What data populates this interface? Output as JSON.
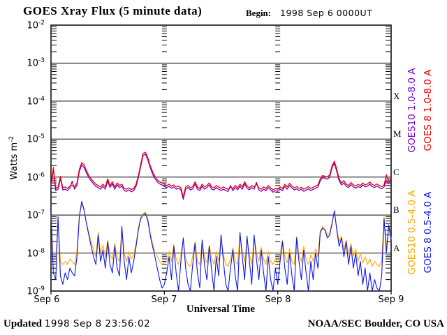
{
  "header": {
    "title": "GOES Xray Flux (5 minute data)",
    "begin_label": "Begin:",
    "begin_value": "1998 Sep 6 0000UT"
  },
  "footer": {
    "updated_label": "Updated",
    "updated_value": "1998 Sep  8 23:56:02",
    "credit": "NOAA/SEC Boulder, CO USA"
  },
  "chart_data": {
    "type": "line",
    "title": "GOES Xray Flux (5 minute data)",
    "xlabel": "Universal Time",
    "ylabel": "Watts m-2",
    "ylabel_base": "Watts m",
    "ylabel_sup": "-2",
    "x_tick_labels": [
      "Sep 6",
      "Sep 7",
      "Sep 8",
      "Sep 9"
    ],
    "x_range_hours": [
      0,
      72
    ],
    "x_step_hours": 0.5,
    "y_scale": "log",
    "y_exponents": [
      -2,
      -3,
      -4,
      -5,
      -6,
      -7,
      -8,
      -9
    ],
    "ylim": [
      1e-09,
      0.01
    ],
    "grid": {
      "horizontal_decade_lines": true,
      "vertical_day_tick_columns": true
    },
    "legend_position": "right-rotated",
    "flux_classes": [
      {
        "label": "X",
        "flux": 0.0001
      },
      {
        "label": "M",
        "flux": 1e-05
      },
      {
        "label": "C",
        "flux": 1e-06
      },
      {
        "label": "B",
        "flux": 1e-07
      },
      {
        "label": "A",
        "flux": 1e-08
      }
    ],
    "series": [
      {
        "name": "GOES10 1.0-8.0 A",
        "color": "#7a00cc",
        "width": 1.3,
        "values": [
          5.3e-07,
          1.6e-06,
          4.4e-07,
          4.8e-07,
          9.2e-07,
          4.6e-07,
          4.8e-07,
          4.4e-07,
          5.1e-07,
          7.8e-07,
          4.8e-07,
          6.2e-07,
          1.4e-06,
          2.1e-06,
          1.8e-06,
          1.3e-06,
          9.7e-07,
          7.9e-07,
          6.6e-07,
          5.7e-07,
          5.3e-07,
          4.8e-07,
          5.7e-07,
          4.8e-07,
          7.9e-07,
          5.3e-07,
          6.6e-07,
          4.8e-07,
          6.2e-07,
          5.3e-07,
          5.7e-07,
          4.4e-07,
          4.2e-07,
          4.6e-07,
          4.1e-07,
          4.4e-07,
          5.7e-07,
          9.7e-07,
          1.9e-06,
          3.7e-06,
          4e-06,
          2.8e-06,
          1.8e-06,
          1.2e-06,
          9.2e-07,
          7.5e-07,
          6.6e-07,
          6.2e-07,
          5.7e-07,
          5.3e-07,
          5.7e-07,
          5.1e-07,
          5.5e-07,
          4.8e-07,
          5.1e-07,
          4.6e-07,
          2.6e-07,
          4.8e-07,
          5.3e-07,
          4.6e-07,
          4.9e-07,
          6.6e-07,
          4.8e-07,
          4.4e-07,
          5.7e-07,
          4.8e-07,
          5.3e-07,
          6.2e-07,
          4.8e-07,
          4.6e-07,
          5.3e-07,
          4.8e-07,
          4.4e-07,
          4.8e-07,
          4.4e-07,
          4.2e-07,
          6e-07,
          4.4e-07,
          5.3e-07,
          4.6e-07,
          5.7e-07,
          4.8e-07,
          6.6e-07,
          5.1e-07,
          4.6e-07,
          5.3e-07,
          4.8e-07,
          7.2e-07,
          4.6e-07,
          4.2e-07,
          4.8e-07,
          4.4e-07,
          5.3e-07,
          4.6e-07,
          4e-07,
          4.4e-07,
          4.2e-07,
          4.8e-07,
          4.4e-07,
          5.7e-07,
          4.8e-07,
          6e-07,
          5.1e-07,
          4.6e-07,
          4.9e-07,
          4.4e-07,
          4.8e-07,
          4.2e-07,
          4.6e-07,
          4.9e-07,
          4.4e-07,
          4.8e-07,
          5.1e-07,
          5.5e-07,
          7.9e-07,
          9.7e-07,
          9.2e-07,
          8.8e-07,
          1e-06,
          1.8e-06,
          2.3e-06,
          1.4e-06,
          7.9e-07,
          6.2e-07,
          7e-07,
          5.7e-07,
          5.3e-07,
          6.3e-07,
          5.5e-07,
          5.1e-07,
          5.6e-07,
          5.3e-07,
          6.2e-07,
          5.5e-07,
          5.8e-07,
          6.5e-07,
          5.6e-07,
          5.3e-07,
          5.8e-07,
          5.3e-07,
          4.9e-07,
          5.5e-07,
          8e-07,
          6.6e-07,
          7.9e-07
        ]
      },
      {
        "name": "GOES 8 1.0-8.0 A",
        "color": "#ee0000",
        "width": 1.3,
        "values": [
          6e-07,
          1.8e-06,
          5e-07,
          5.5e-07,
          1.05e-06,
          5.2e-07,
          5.5e-07,
          5e-07,
          5.8e-07,
          6e-07,
          5.5e-07,
          7e-07,
          1.6e-06,
          2.4e-06,
          2.1e-06,
          1.5e-06,
          1.1e-06,
          9e-07,
          7.5e-07,
          6.5e-07,
          6e-07,
          5.5e-07,
          6.5e-07,
          5.5e-07,
          9e-07,
          6e-07,
          7.5e-07,
          5.5e-07,
          7e-07,
          6e-07,
          6.5e-07,
          5e-07,
          4.8e-07,
          5.2e-07,
          4.7e-07,
          5e-07,
          6.5e-07,
          1.1e-06,
          2.2e-06,
          4.2e-06,
          4.5e-06,
          3.2e-06,
          2e-06,
          1.4e-06,
          1.05e-06,
          8.5e-07,
          7.5e-07,
          7e-07,
          6.5e-07,
          6e-07,
          6.5e-07,
          5.8e-07,
          6.2e-07,
          5.5e-07,
          5.8e-07,
          5.2e-07,
          3e-07,
          5.5e-07,
          6e-07,
          5.2e-07,
          5.6e-07,
          7.5e-07,
          5.5e-07,
          5e-07,
          6.5e-07,
          5.5e-07,
          6e-07,
          7e-07,
          5.5e-07,
          5.2e-07,
          6e-07,
          5.5e-07,
          5e-07,
          5.5e-07,
          5e-07,
          4.8e-07,
          5.4e-07,
          5e-07,
          6e-07,
          5.2e-07,
          6.5e-07,
          5.5e-07,
          7.5e-07,
          5.8e-07,
          5.2e-07,
          6e-07,
          5.5e-07,
          6.5e-07,
          5.2e-07,
          4.8e-07,
          5.5e-07,
          5e-07,
          6e-07,
          5.2e-07,
          4.6e-07,
          5e-07,
          4.8e-07,
          5.5e-07,
          5e-07,
          6.5e-07,
          5.5e-07,
          6.8e-07,
          5.8e-07,
          5.2e-07,
          5.6e-07,
          5e-07,
          5.4e-07,
          4.8e-07,
          5.2e-07,
          5.6e-07,
          5e-07,
          5.4e-07,
          5.8e-07,
          6.2e-07,
          9e-07,
          1.1e-06,
          1.05e-06,
          1e-06,
          1.15e-06,
          2e-06,
          2.6e-06,
          1.6e-06,
          9e-07,
          7e-07,
          8e-07,
          6.5e-07,
          6e-07,
          7.2e-07,
          6.2e-07,
          5.8e-07,
          6.4e-07,
          6e-07,
          7e-07,
          6.2e-07,
          6.6e-07,
          7.4e-07,
          6.4e-07,
          6e-07,
          6.6e-07,
          6e-07,
          5.6e-07,
          6.2e-07,
          1.15e-06,
          7.5e-07,
          9e-07
        ]
      },
      {
        "name": "GOES10 0.5-4.0 A",
        "color": "#ffa800",
        "width": 1.1,
        "values": [
          1e-07,
          6e-09,
          5e-09,
          7e-08,
          6e-09,
          5e-09,
          6e-09,
          5e-09,
          7e-09,
          6e-09,
          5e-09,
          1.2e-08,
          1e-07,
          2e-07,
          1.3e-07,
          6.5e-08,
          3.5e-08,
          2e-08,
          1.2e-08,
          8e-09,
          3.5e-08,
          1e-08,
          1.6e-08,
          8e-09,
          2.2e-08,
          9e-09,
          7e-09,
          1.8e-08,
          8e-09,
          6e-09,
          4.5e-08,
          1e-08,
          6e-09,
          1.1e-08,
          7e-09,
          9e-09,
          1.8e-08,
          4.5e-08,
          9e-08,
          1.1e-07,
          1.2e-07,
          8e-08,
          3.5e-08,
          1.8e-08,
          1.1e-08,
          8e-09,
          6e-09,
          5e-09,
          5.5e-09,
          6e-09,
          1.1e-08,
          6e-09,
          1.7e-08,
          7e-09,
          5e-09,
          9e-09,
          2.2e-08,
          7e-09,
          5e-09,
          4.5e-09,
          8e-09,
          2e-08,
          6e-09,
          5e-09,
          2e-08,
          8e-09,
          5.5e-09,
          1.6e-08,
          7e-09,
          5e-09,
          1.1e-08,
          6e-09,
          2.6e-08,
          9e-09,
          5e-09,
          4.5e-09,
          7e-09,
          1.4e-08,
          6e-09,
          5e-09,
          3.2e-08,
          1.1e-08,
          6e-09,
          2.5e-08,
          9e-09,
          5e-09,
          2.7e-08,
          1e-08,
          6e-09,
          1.4e-08,
          7e-09,
          5e-09,
          1.1e-08,
          6e-09,
          5e-09,
          7e-09,
          5.5e-09,
          9e-09,
          2.2e-08,
          8e-09,
          5.5e-09,
          1.3e-08,
          6e-09,
          5e-09,
          2.7e-08,
          9e-09,
          6e-09,
          1.5e-08,
          7e-09,
          5e-09,
          9e-09,
          6e-09,
          1.3e-08,
          8e-09,
          3.8e-08,
          5e-08,
          4.4e-08,
          3e-08,
          3.4e-08,
          6.5e-08,
          1.2e-07,
          4.5e-08,
          2e-08,
          2.8e-08,
          1.2e-08,
          2.2e-08,
          9e-09,
          1.8e-08,
          8e-09,
          1.3e-08,
          6e-09,
          1e-08,
          5.5e-09,
          8e-09,
          5e-09,
          7e-09,
          4.5e-09,
          6e-09,
          5e-09,
          4.5e-09,
          6e-09,
          9e-08,
          1.4e-08,
          6e-08,
          2.4e-08
        ]
      },
      {
        "name": "GOES 8 0.5-4.0 A",
        "color": "#0b16ee",
        "width": 1.1,
        "values": [
          1.2e-07,
          3e-09,
          2e-09,
          9e-08,
          2.5e-09,
          1.5e-09,
          3e-09,
          2e-09,
          4e-09,
          3e-09,
          2.5e-09,
          8e-09,
          9e-08,
          2.3e-07,
          1.4e-07,
          6e-08,
          3e-08,
          1.5e-08,
          8e-09,
          5e-09,
          3e-08,
          6e-09,
          1.2e-08,
          4e-09,
          2e-08,
          5e-09,
          3e-09,
          1.5e-08,
          4e-09,
          2.5e-09,
          5e-08,
          6e-09,
          2e-09,
          8e-09,
          3e-09,
          6e-09,
          1.5e-08,
          4e-08,
          8e-08,
          1e-07,
          1.1e-07,
          7e-08,
          3e-08,
          1.5e-08,
          8e-09,
          4e-09,
          2e-09,
          1.2e-09,
          1.5e-09,
          3e-09,
          8e-09,
          2e-09,
          1.5e-08,
          3e-09,
          1e-09,
          6e-09,
          2.5e-08,
          4e-09,
          1.5e-09,
          8e-10,
          5e-09,
          1.8e-08,
          3e-09,
          1.2e-09,
          2.2e-08,
          5e-09,
          2e-09,
          1.5e-08,
          3.5e-09,
          1e-09,
          8e-09,
          2.5e-09,
          3e-08,
          6e-09,
          1.5e-09,
          8e-10,
          4e-09,
          1.2e-08,
          2.5e-09,
          1e-09,
          3.5e-08,
          8e-09,
          2e-09,
          2.8e-08,
          6e-09,
          1.5e-09,
          3e-08,
          7e-09,
          2e-09,
          1.2e-08,
          3e-09,
          1e-09,
          8e-09,
          2e-09,
          9e-10,
          4e-09,
          1.5e-09,
          6e-09,
          2e-08,
          4e-09,
          1.5e-09,
          1e-08,
          2.5e-09,
          9e-10,
          2.5e-08,
          6e-09,
          2e-09,
          1.2e-08,
          3e-09,
          1e-09,
          6e-09,
          2e-09,
          1e-08,
          4e-09,
          3.5e-08,
          4.5e-08,
          4e-08,
          2.5e-08,
          3e-08,
          6e-08,
          1.3e-07,
          4e-08,
          1.5e-08,
          2.5e-08,
          8e-09,
          2e-08,
          5e-09,
          1.5e-08,
          4e-09,
          1e-08,
          2.5e-09,
          6e-09,
          1.5e-09,
          4e-09,
          1e-09,
          3e-09,
          8e-10,
          2e-09,
          1.2e-09,
          8e-10,
          2.5e-09,
          8e-08,
          1e-08,
          5.5e-08,
          2e-08
        ]
      }
    ]
  }
}
